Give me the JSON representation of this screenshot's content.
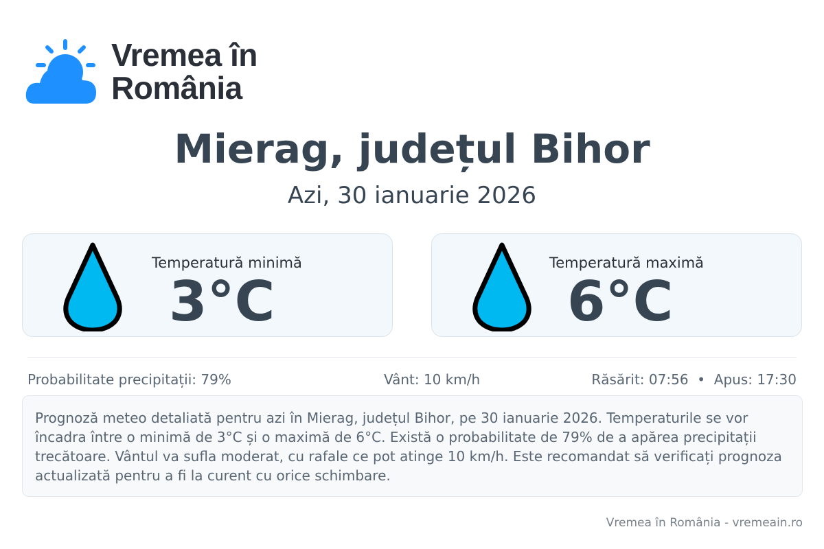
{
  "brand": {
    "line1": "Vremea în",
    "line2": "România",
    "icon": "sun-cloud-icon",
    "color": "#1e90ff"
  },
  "header": {
    "title": "Mierag, județul Bihor",
    "date": "Azi, 30 ianuarie 2026"
  },
  "cards": [
    {
      "label": "Temperatură minimă",
      "value": "3°C",
      "icon": "water-drop-icon"
    },
    {
      "label": "Temperatură maximă",
      "value": "6°C",
      "icon": "water-drop-icon"
    }
  ],
  "stats": {
    "precip": "Probabilitate precipitații: 79%",
    "wind": "Vânt: 10 km/h",
    "sun": "Răsărit: 07:56  •  Apus: 17:30"
  },
  "description": "Prognoză meteo detaliată pentru azi în Mierag, județul Bihor, pe 30 ianuarie 2026. Temperaturile se vor încadra între o minimă de 3°C și o maximă de 6°C. Există o probabilitate de 79% de a apărea precipitații trecătoare. Vântul va sufla moderat, cu rafale ce pot atinge 10 km/h. Este recomandat să verificați prognoza actualizată pentru a fi la curent cu orice schimbare.",
  "footer": "Vremea în România - vremeain.ro"
}
